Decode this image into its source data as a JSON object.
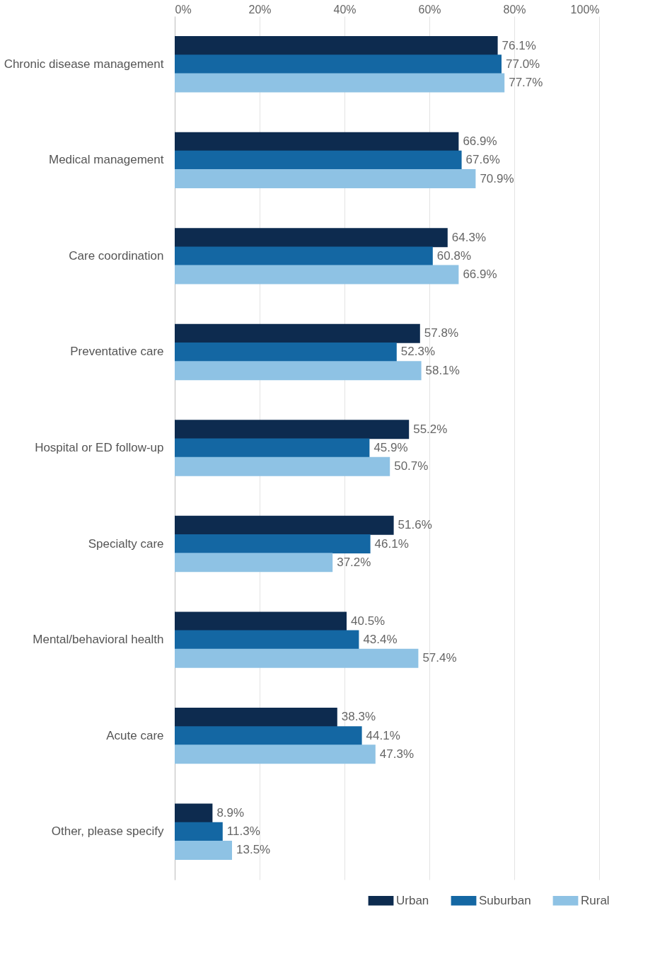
{
  "chart_data": {
    "type": "bar",
    "orientation": "horizontal",
    "categories": [
      "Chronic disease management",
      "Medical management",
      "Care coordination",
      "Preventative care",
      "Hospital or ED follow-up",
      "Specialty care",
      "Mental/behavioral health",
      "Acute care",
      "Other, please specify"
    ],
    "series": [
      {
        "name": "Urban",
        "color": "#0d2b4f",
        "values": [
          76.1,
          66.9,
          64.3,
          57.8,
          55.2,
          51.6,
          40.5,
          38.3,
          8.9
        ],
        "value_labels": [
          "76.1%",
          "66.9%",
          "64.3%",
          "57.8%",
          "55.2%",
          "51.6%",
          "40.5%",
          "38.3%",
          "8.9%"
        ]
      },
      {
        "name": "Suburban",
        "color": "#1467a3",
        "values": [
          77.0,
          67.6,
          60.8,
          52.3,
          45.9,
          46.1,
          43.4,
          44.1,
          11.3
        ],
        "value_labels": [
          "77.0%",
          "67.6%",
          "60.8%",
          "52.3%",
          "45.9%",
          "46.1%",
          "43.4%",
          "44.1%",
          "11.3%"
        ]
      },
      {
        "name": "Rural",
        "color": "#8ec2e4",
        "values": [
          77.7,
          70.9,
          66.9,
          58.1,
          50.7,
          37.2,
          57.4,
          47.3,
          13.5
        ],
        "value_labels": [
          "77.7%",
          "70.9%",
          "66.9%",
          "58.1%",
          "50.7%",
          "37.2%",
          "57.4%",
          "47.3%",
          "13.5%"
        ]
      }
    ],
    "xlim": [
      0,
      100
    ],
    "xticks": [
      {
        "value": 0,
        "label": "0%"
      },
      {
        "value": 20,
        "label": "20%"
      },
      {
        "value": 40,
        "label": "40%"
      },
      {
        "value": 60,
        "label": "60%"
      },
      {
        "value": 80,
        "label": "80%"
      },
      {
        "value": 100,
        "label": "100%"
      }
    ],
    "grid": "x",
    "legend": "bottom right"
  }
}
